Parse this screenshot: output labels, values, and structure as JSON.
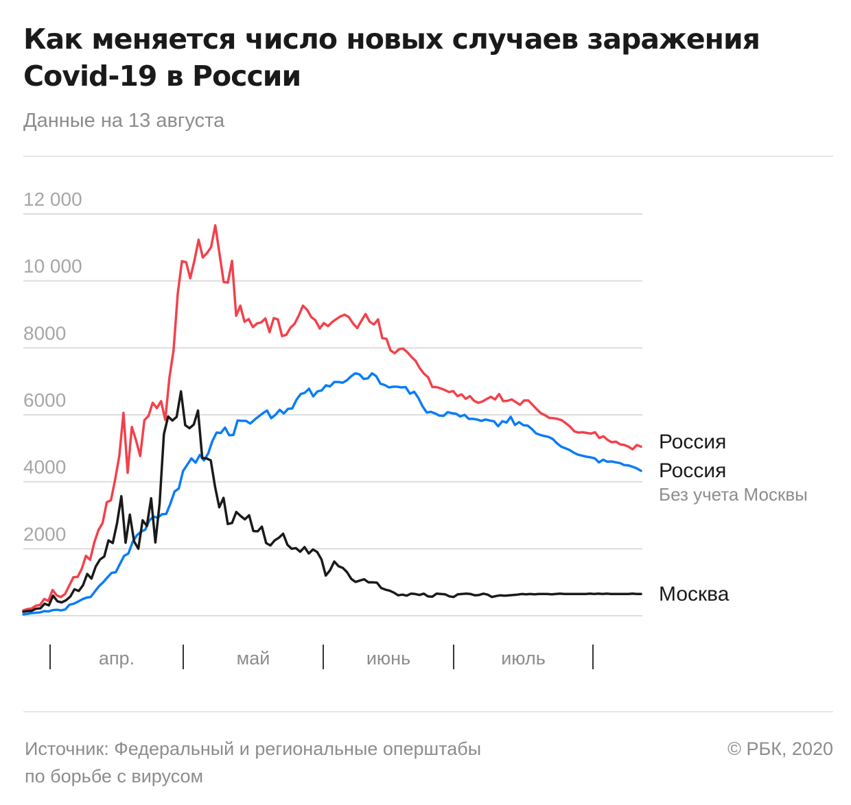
{
  "header": {
    "title_line1": "Как меняется число новых случаев заражения",
    "title_line2": "Covid-19 в России",
    "subtitle": "Данные на 13 августа"
  },
  "footer": {
    "source_line1": "Источник: Федеральный и региональные оперштабы",
    "source_line2": "по борьбе с вирусом",
    "copyright": "© РБК, 2020"
  },
  "chart_data": {
    "type": "line",
    "ylim": [
      0,
      12000
    ],
    "yticks": [
      2000,
      4000,
      6000,
      8000,
      10000,
      12000
    ],
    "ytick_labels": [
      "2000",
      "4000",
      "6000",
      "8000",
      "10 000",
      "12 000"
    ],
    "grid": true,
    "month_labels": [
      "апр.",
      "май",
      "июнь",
      "июль"
    ],
    "colors": {
      "russia": "#f2414b",
      "russia_ex_moscow": "#0a7cf5",
      "moscow": "#1a1a1a"
    },
    "series": [
      {
        "key": "russia",
        "name": "Россия",
        "note": "",
        "values": [
          160,
          200,
          220,
          300,
          320,
          500,
          440,
          770,
          610,
          560,
          650,
          900,
          1150,
          1160,
          1400,
          1790,
          1670,
          2190,
          2560,
          2770,
          3390,
          3450,
          4070,
          4780,
          6060,
          4270,
          5640,
          5240,
          4770,
          5840,
          5970,
          6360,
          6200,
          6410,
          5850,
          7100,
          7930,
          9620,
          10590,
          10560,
          10080,
          10610,
          11230,
          10700,
          10830,
          11010,
          11660,
          10820,
          9970,
          9950,
          10600,
          8960,
          9260,
          8780,
          8860,
          8620,
          8730,
          8760,
          8880,
          8470,
          8890,
          8850,
          8350,
          8390,
          8600,
          8720,
          8970,
          9260,
          9140,
          8920,
          8820,
          8580,
          8740,
          8650,
          8770,
          8860,
          8940,
          8990,
          8920,
          8730,
          8590,
          8810,
          9010,
          8780,
          8700,
          8850,
          8290,
          8270,
          7920,
          7840,
          7960,
          7980,
          7870,
          7730,
          7610,
          7390,
          7230,
          7120,
          6830,
          6830,
          6790,
          6740,
          6680,
          6710,
          6560,
          6610,
          6480,
          6560,
          6420,
          6360,
          6400,
          6470,
          6540,
          6460,
          6620,
          6410,
          6420,
          6460,
          6380,
          6300,
          6430,
          6430,
          6300,
          6170,
          6050,
          5990,
          5910,
          5900,
          5880,
          5840,
          5750,
          5650,
          5510,
          5470,
          5480,
          5460,
          5440,
          5480,
          5310,
          5360,
          5250,
          5180,
          5200,
          5120,
          5100,
          5050,
          4970,
          5100,
          5050
        ]
      },
      {
        "key": "russia_ex_moscow",
        "name": "Россия",
        "note": "Без учета Москвы",
        "values": [
          40,
          60,
          80,
          90,
          100,
          140,
          130,
          170,
          180,
          160,
          190,
          330,
          360,
          420,
          490,
          540,
          560,
          720,
          880,
          1000,
          1140,
          1280,
          1300,
          1550,
          1790,
          1860,
          2200,
          2400,
          2510,
          2570,
          2850,
          2960,
          2930,
          3030,
          3040,
          3350,
          3710,
          3800,
          4320,
          4510,
          4700,
          4570,
          4800,
          4640,
          4850,
          5220,
          5470,
          5460,
          5620,
          5390,
          5400,
          5830,
          5820,
          5820,
          5740,
          5850,
          5950,
          6050,
          6130,
          5900,
          6000,
          6150,
          6040,
          6180,
          6190,
          6450,
          6620,
          6660,
          6780,
          6550,
          6700,
          6730,
          6880,
          6850,
          6980,
          6980,
          6960,
          7030,
          7150,
          7240,
          7210,
          7070,
          7090,
          7240,
          7150,
          6930,
          6890,
          6820,
          6840,
          6840,
          6820,
          6830,
          6630,
          6690,
          6510,
          6260,
          6070,
          6090,
          6040,
          5980,
          5970,
          6080,
          6050,
          6030,
          5950,
          6000,
          5880,
          5880,
          5860,
          5820,
          5860,
          5830,
          5810,
          5660,
          5810,
          5770,
          5940,
          5700,
          5780,
          5690,
          5680,
          5580,
          5450,
          5400,
          5370,
          5340,
          5280,
          5150,
          5050,
          5000,
          4950,
          4870,
          4810,
          4780,
          4750,
          4730,
          4700,
          4580,
          4660,
          4600,
          4610,
          4580,
          4560,
          4500,
          4490,
          4450,
          4400,
          4330
        ]
      },
      {
        "key": "moscow",
        "name": "Москва",
        "note": "",
        "values": [
          120,
          140,
          150,
          210,
          220,
          360,
          310,
          600,
          430,
          400,
          460,
          570,
          790,
          740,
          910,
          1250,
          1110,
          1470,
          1680,
          1770,
          2250,
          2170,
          2770,
          3570,
          2180,
          3020,
          2220,
          2000,
          2850,
          2680,
          3510,
          2190,
          3360,
          5420,
          5950,
          5830,
          5940,
          6700,
          5690,
          5600,
          5710,
          6130,
          4710,
          4700,
          4640,
          3860,
          3240,
          3520,
          2740,
          2770,
          3100,
          2980,
          2880,
          3000,
          2530,
          2520,
          2660,
          2170,
          2100,
          2250,
          2330,
          2450,
          2120,
          2000,
          2020,
          1910,
          2050,
          1860,
          1980,
          1900,
          1680,
          1200,
          1360,
          1620,
          1480,
          1430,
          1300,
          1100,
          1010,
          1050,
          1090,
          1000,
          1000,
          990,
          830,
          780,
          750,
          690,
          610,
          630,
          600,
          660,
          650,
          620,
          660,
          580,
          570,
          660,
          650,
          640,
          580,
          560,
          640,
          650,
          660,
          650,
          610,
          620,
          660,
          630,
          560,
          590,
          610,
          600,
          610,
          620,
          630,
          650,
          640,
          650,
          640,
          650,
          650,
          650,
          640,
          650,
          660,
          650,
          650,
          650,
          650,
          650,
          650,
          660,
          650,
          660,
          650,
          660,
          650,
          650,
          650,
          650,
          650,
          660,
          650,
          650
        ]
      }
    ]
  }
}
